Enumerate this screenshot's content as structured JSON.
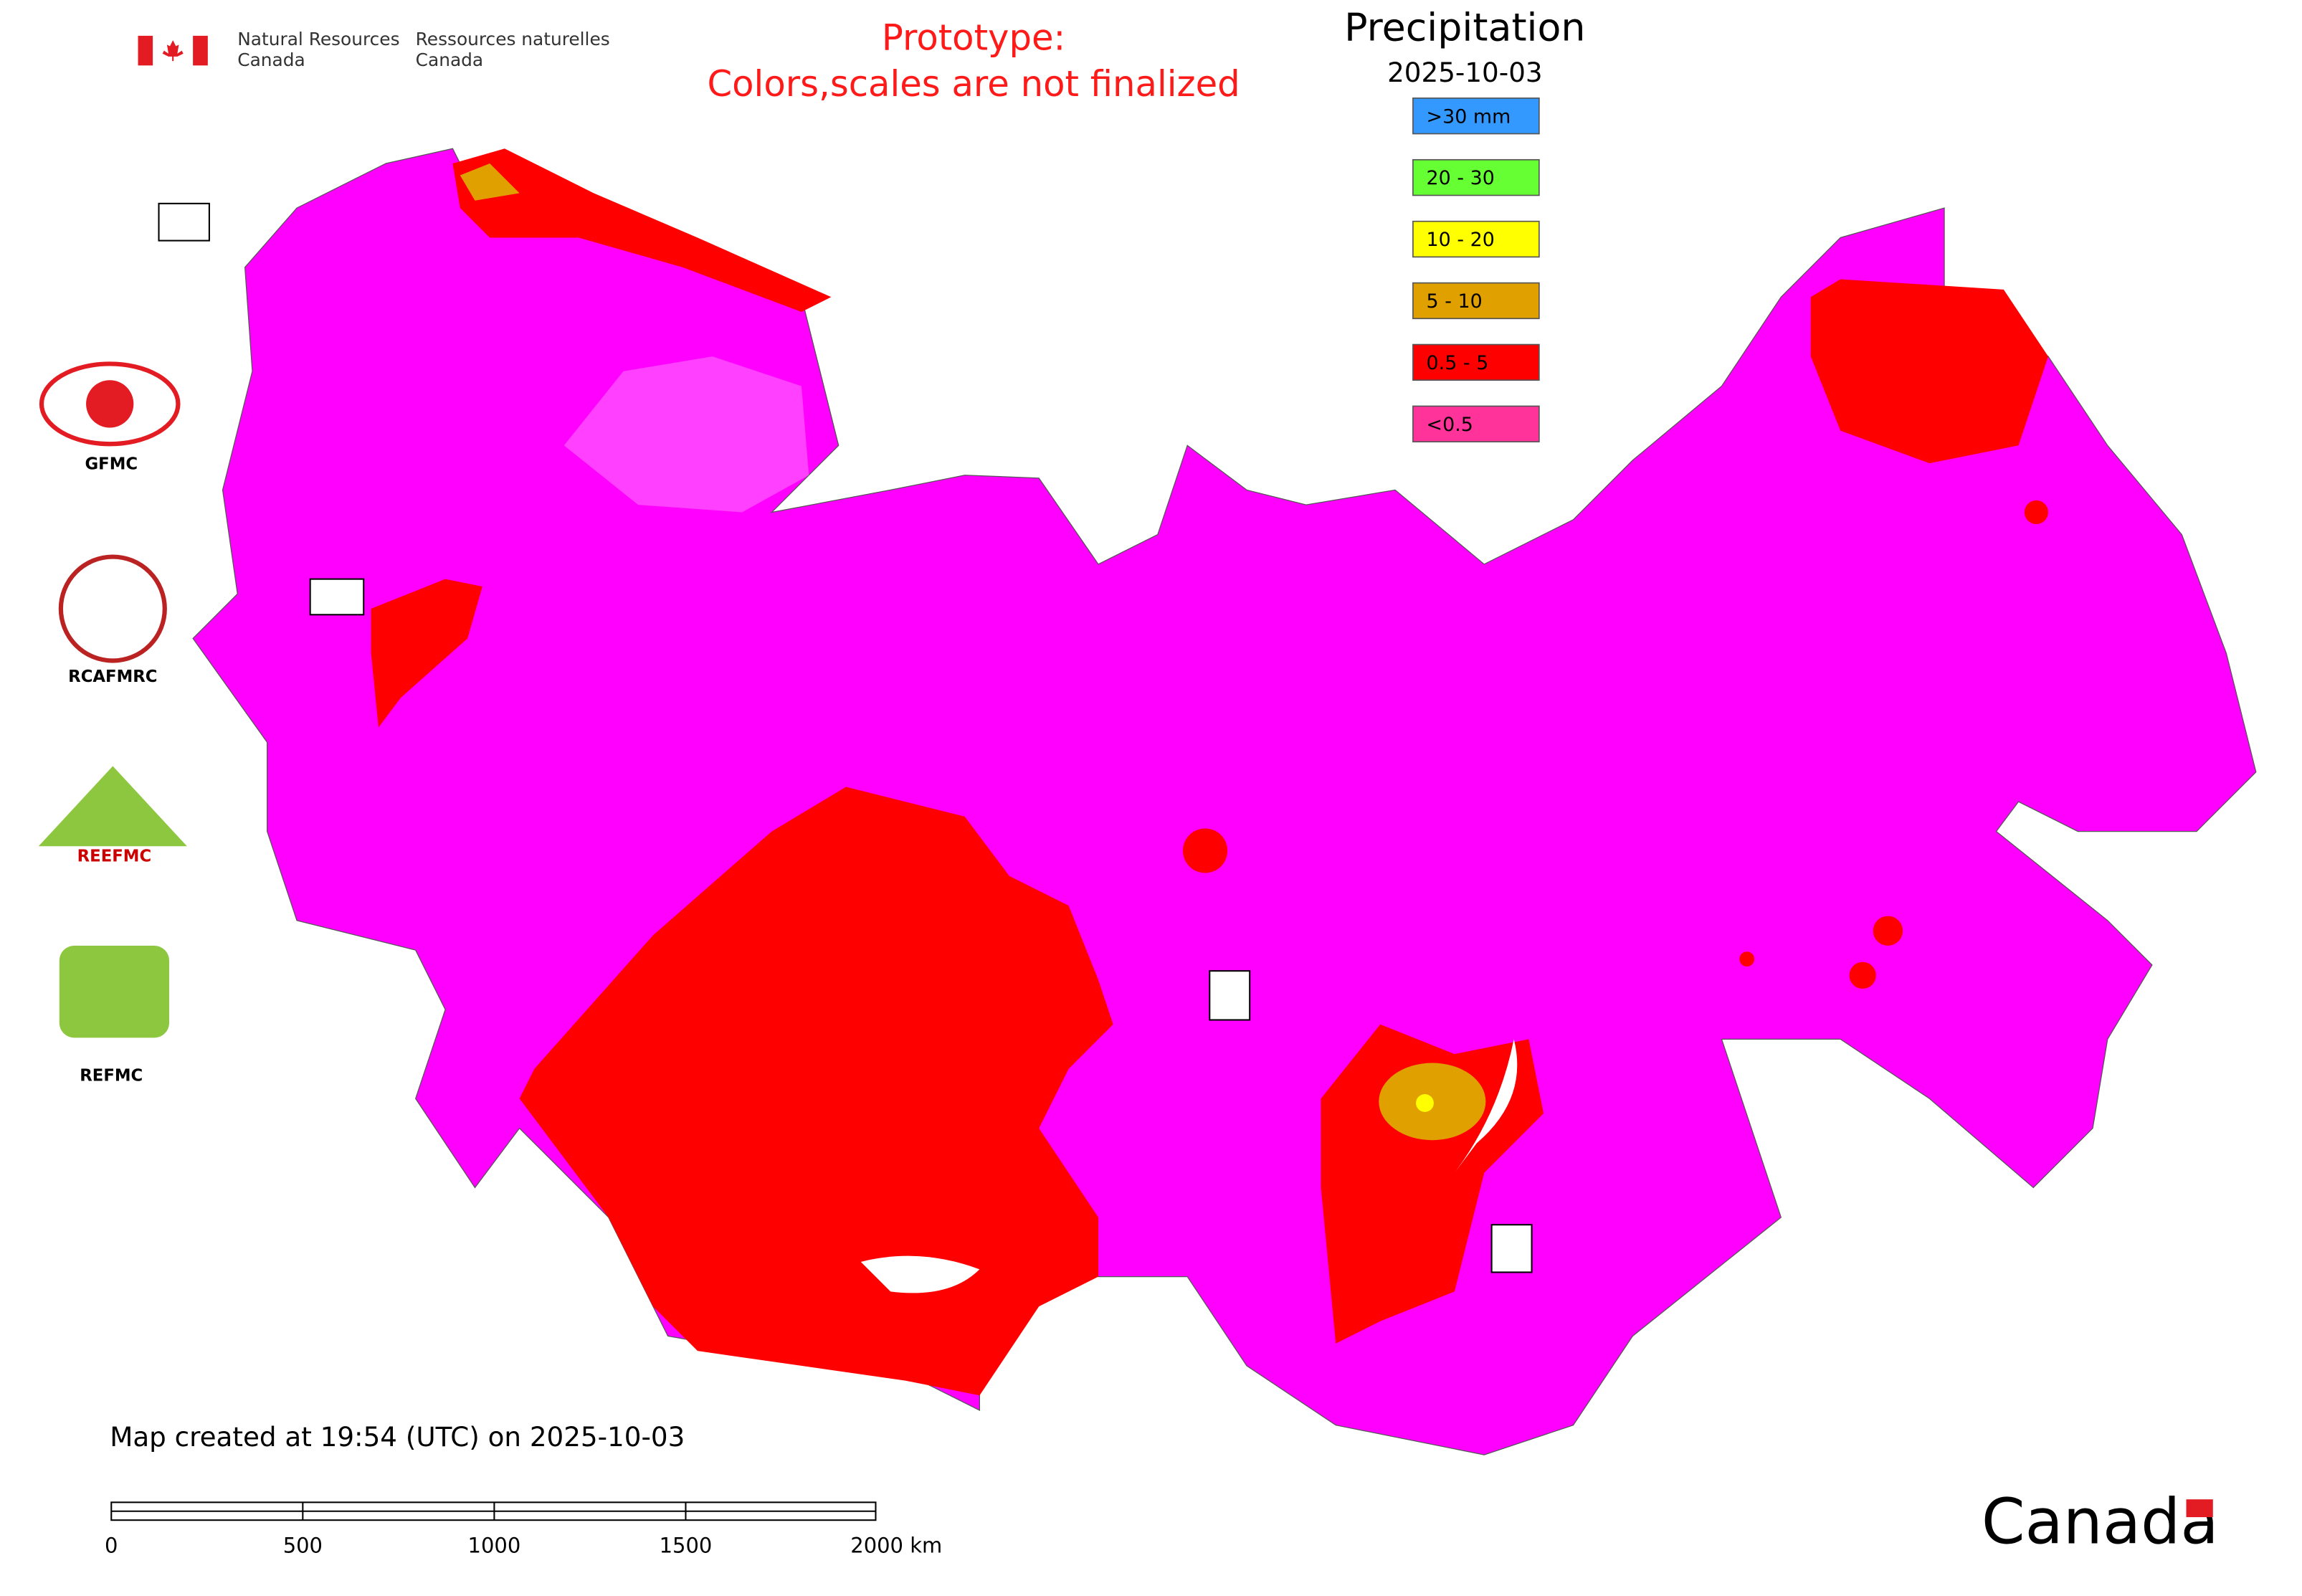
{
  "header": {
    "department_en": [
      "Natural Resources",
      "Canada"
    ],
    "department_fr": [
      "Ressources naturelles",
      "Canada"
    ]
  },
  "notice": [
    "Prototype:",
    "Colors,scales are not finalized"
  ],
  "legend": {
    "title": "Precipitation",
    "date": "2025-10-03",
    "items": [
      {
        "label": ">30 mm",
        "color": "#3399ff"
      },
      {
        "label": "20 - 30",
        "color": "#66ff33"
      },
      {
        "label": "10 - 20",
        "color": "#ffff00"
      },
      {
        "label": "5 - 10",
        "color": "#e0a000"
      },
      {
        "label": "0.5 - 5",
        "color": "#ff0000"
      },
      {
        "label": "<0.5",
        "color": "#ff3399"
      }
    ]
  },
  "logos": [
    "GFMC",
    "RCAFMRC",
    "REEFMC",
    "REFMC"
  ],
  "footer": {
    "created": "Map created at 19:54 (UTC) on 2025-10-03",
    "scale_labels": [
      "0",
      "500",
      "1000",
      "1500",
      "2000 km"
    ],
    "wordmark": "Canada"
  }
}
